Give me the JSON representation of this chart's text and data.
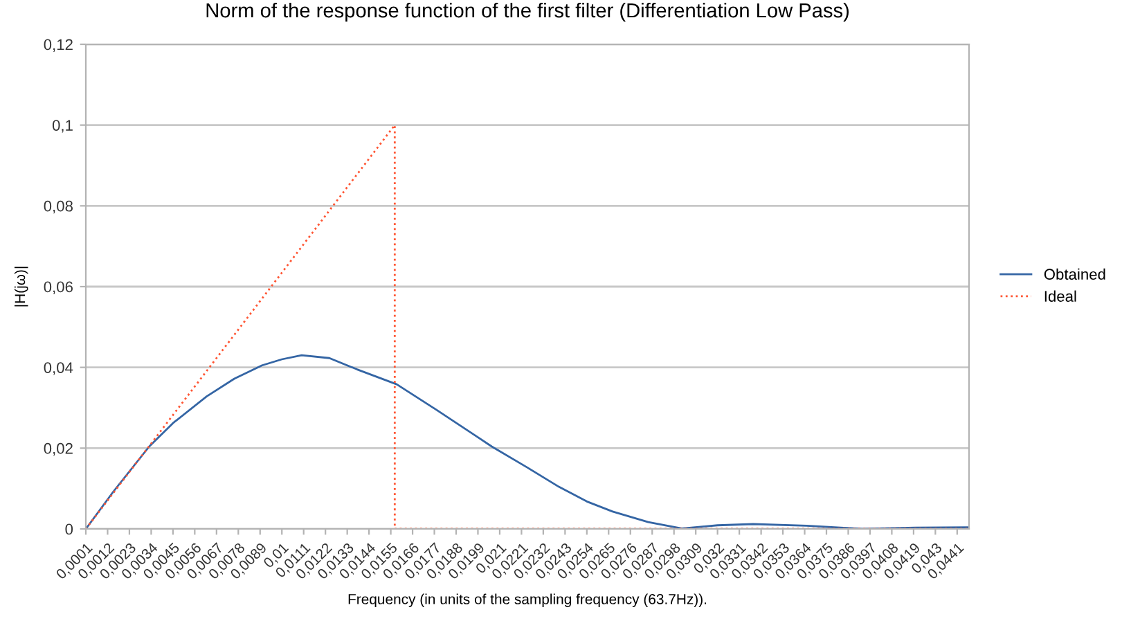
{
  "chart_data": {
    "type": "line",
    "title": "Norm of the response function of the first filter (Differentiation Low Pass)",
    "xlabel": "Frequency (in units of the sampling frequency (63.7Hz)).",
    "ylabel": "|H(jω)|",
    "series": [
      {
        "name": "Obtained",
        "color": "#3465a4",
        "line_style": "solid",
        "x": [
          0.0001,
          0.0015,
          0.0033,
          0.0045,
          0.0062,
          0.0076,
          0.009,
          0.01,
          0.011,
          0.0124,
          0.0138,
          0.0158,
          0.0178,
          0.0199,
          0.0206,
          0.0224,
          0.024,
          0.0254,
          0.0267,
          0.0285,
          0.0302,
          0.032,
          0.0338,
          0.0365,
          0.0393,
          0.042,
          0.0447
        ],
        "values": [
          0,
          0.0093,
          0.0204,
          0.0262,
          0.0328,
          0.0372,
          0.0405,
          0.042,
          0.043,
          0.0423,
          0.0395,
          0.0358,
          0.0295,
          0.0227,
          0.0204,
          0.0152,
          0.0104,
          0.0068,
          0.0043,
          0.0017,
          0.0001,
          0.0009,
          0.0012,
          0.0008,
          0,
          0.0003,
          0.0004
        ]
      },
      {
        "name": "Ideal",
        "color": "#ff5533",
        "line_style": "dotted",
        "x": [
          0.0001,
          0.0157,
          0.0157,
          0.0447
        ],
        "values": [
          0,
          0.1,
          0,
          0
        ]
      }
    ],
    "xlim": [
      0.0001,
      0.0447
    ],
    "xticks": [
      {
        "value": 0.0001,
        "label": "0,0001"
      },
      {
        "value": 0.0012,
        "label": "0,0012"
      },
      {
        "value": 0.0023,
        "label": "0,0023"
      },
      {
        "value": 0.0034,
        "label": "0,0034"
      },
      {
        "value": 0.0045,
        "label": "0,0045"
      },
      {
        "value": 0.0056,
        "label": "0,0056"
      },
      {
        "value": 0.0067,
        "label": "0,0067"
      },
      {
        "value": 0.0078,
        "label": "0,0078"
      },
      {
        "value": 0.0089,
        "label": "0,0089"
      },
      {
        "value": 0.01,
        "label": "0,01"
      },
      {
        "value": 0.0111,
        "label": "0,0111"
      },
      {
        "value": 0.0122,
        "label": "0,0122"
      },
      {
        "value": 0.0133,
        "label": "0,0133"
      },
      {
        "value": 0.0144,
        "label": "0,0144"
      },
      {
        "value": 0.0155,
        "label": "0,0155"
      },
      {
        "value": 0.0166,
        "label": "0,0166"
      },
      {
        "value": 0.0177,
        "label": "0,0177"
      },
      {
        "value": 0.0188,
        "label": "0,0188"
      },
      {
        "value": 0.0199,
        "label": "0,0199"
      },
      {
        "value": 0.021,
        "label": "0,021"
      },
      {
        "value": 0.0221,
        "label": "0,0221"
      },
      {
        "value": 0.0232,
        "label": "0,0232"
      },
      {
        "value": 0.0243,
        "label": "0,0243"
      },
      {
        "value": 0.0254,
        "label": "0,0254"
      },
      {
        "value": 0.0265,
        "label": "0,0265"
      },
      {
        "value": 0.0276,
        "label": "0,0276"
      },
      {
        "value": 0.0287,
        "label": "0,0287"
      },
      {
        "value": 0.0298,
        "label": "0,0298"
      },
      {
        "value": 0.0309,
        "label": "0,0309"
      },
      {
        "value": 0.032,
        "label": "0,032"
      },
      {
        "value": 0.0331,
        "label": "0,0331"
      },
      {
        "value": 0.0342,
        "label": "0,0342"
      },
      {
        "value": 0.0353,
        "label": "0,0353"
      },
      {
        "value": 0.0364,
        "label": "0,0364"
      },
      {
        "value": 0.0375,
        "label": "0,0375"
      },
      {
        "value": 0.0386,
        "label": "0,0386"
      },
      {
        "value": 0.0397,
        "label": "0,0397"
      },
      {
        "value": 0.0408,
        "label": "0,0408"
      },
      {
        "value": 0.0419,
        "label": "0,0419"
      },
      {
        "value": 0.043,
        "label": "0,043"
      },
      {
        "value": 0.0441,
        "label": "0,0441"
      }
    ],
    "ylim": [
      0,
      0.12
    ],
    "yticks": [
      {
        "value": 0,
        "label": "0"
      },
      {
        "value": 0.02,
        "label": "0,02"
      },
      {
        "value": 0.04,
        "label": "0,04"
      },
      {
        "value": 0.06,
        "label": "0,06"
      },
      {
        "value": 0.08,
        "label": "0,08"
      },
      {
        "value": 0.1,
        "label": "0,1"
      },
      {
        "value": 0.12,
        "label": "0,12"
      }
    ],
    "grid": "y",
    "legend": "right",
    "marker": "none"
  }
}
